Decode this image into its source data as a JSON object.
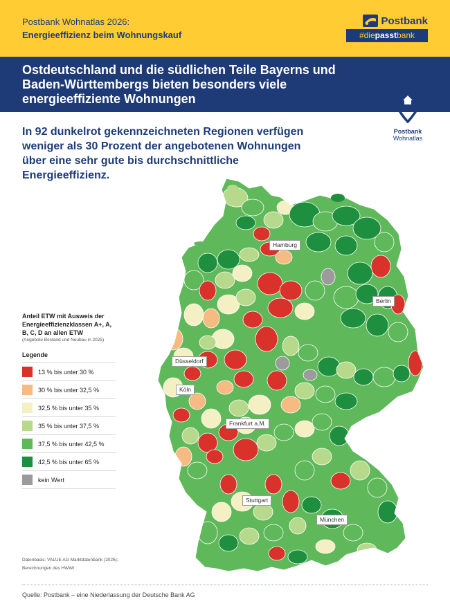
{
  "header": {
    "line1": "Postbank Wohnatlas 2026:",
    "line2": "Energieeffizienz beim Wohnungskauf"
  },
  "brand": {
    "name": "Postbank",
    "hashtag_prefix": "#die",
    "hashtag_bold": "passt",
    "hashtag_suffix": "bank",
    "logo_icon": "postbank-horn-icon"
  },
  "headline": "Ostdeutschland und die südlichen Teile Bayerns und Baden-Württembergs bieten besonders viele energieeffiziente Wohnungen",
  "badge": {
    "icon": "house-pin-icon",
    "line1": "Postbank",
    "line2": "Wohnatlas"
  },
  "subheadline": "In 92 dunkelrot gekennzeichneten Regionen verfügen weniger als 30 Prozent der angebotenen Wohnungen über eine sehr gute bis durchschnittliche Energieeffizienz.",
  "legend": {
    "title": "Anteil ETW mit Ausweis der Energieeffizienzklassen A+, A, B, C, D an allen ETW",
    "subtitle": "(Angebote Bestand und Neubau in 2025)",
    "heading": "Legende",
    "items": [
      {
        "label": "13 % bis unter 30 %",
        "color": "#d9322b"
      },
      {
        "label": "30 % bis unter 32,5 %",
        "color": "#f5bb82"
      },
      {
        "label": "32,5 % bis unter 35 %",
        "color": "#f5f0c4"
      },
      {
        "label": "35 % bis unter 37,5 %",
        "color": "#b6d98c"
      },
      {
        "label": "37,5 % bis unter 42,5 %",
        "color": "#5fb85a"
      },
      {
        "label": "42,5 % bis unter 65 %",
        "color": "#1e8f3e"
      },
      {
        "label": "kein Wert",
        "color": "#9b9b9b"
      }
    ]
  },
  "cities": {
    "hamburg": "Hamburg",
    "berlin": "Berlin",
    "duesseldorf": "Düsseldorf",
    "koeln": "Köln",
    "frankfurt": "Frankfurt a.M.",
    "stuttgart": "Stuttgart",
    "muenchen": "München"
  },
  "source_small": "Datenbasis: VALUE AG Marktdatenbank (2026); Berechnungen des HWWI",
  "footer": "Quelle: Postbank – eine Niederlassung der Deutsche Bank AG"
}
